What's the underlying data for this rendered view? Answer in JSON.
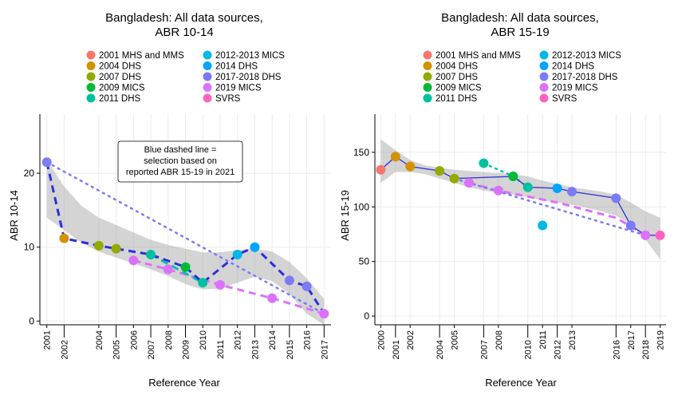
{
  "legend_entries": [
    {
      "label": "2001 MHS and MMS",
      "color": "#F8766D"
    },
    {
      "label": "2004 DHS",
      "color": "#D39200"
    },
    {
      "label": "2007 DHS",
      "color": "#93AA00"
    },
    {
      "label": "2009 MICS",
      "color": "#00BA38"
    },
    {
      "label": "2011 DHS",
      "color": "#00C19F"
    },
    {
      "label": "2012-2013 MICS",
      "color": "#00B9E3"
    },
    {
      "label": "2014 DHS",
      "color": "#00A5FF"
    },
    {
      "label": "2017-2018 DHS",
      "color": "#7B7BF4"
    },
    {
      "label": "2019 MICS",
      "color": "#DB72FB"
    },
    {
      "label": "SVRS",
      "color": "#FF61C3"
    }
  ],
  "annotation": {
    "lines": [
      "Blue dashed line =",
      "selection based on",
      "reported ABR 15-19 in 2021"
    ]
  },
  "chart_data": [
    {
      "type": "scatter",
      "title": "Bangladesh: All data sources,",
      "subtitle": "ABR 10-14",
      "xlabel": "Reference Year",
      "ylabel": "ABR 10-14",
      "xlim": [
        2000.6,
        2017.4
      ],
      "ylim": [
        -0.5,
        28
      ],
      "xticks": [
        2001,
        2002,
        2004,
        2005,
        2006,
        2007,
        2008,
        2009,
        2010,
        2011,
        2012,
        2013,
        2014,
        2015,
        2016,
        2017
      ],
      "yticks": [
        0,
        10,
        20
      ],
      "grid": true,
      "points": [
        {
          "x": 2001,
          "y": 21.5,
          "source": "2017-2018 DHS"
        },
        {
          "x": 2002,
          "y": 11.2,
          "source": "2004 DHS"
        },
        {
          "x": 2004,
          "y": 10.2,
          "source": "2007 DHS"
        },
        {
          "x": 2005,
          "y": 9.8,
          "source": "2007 DHS"
        },
        {
          "x": 2006,
          "y": 8.2,
          "source": "2019 MICS"
        },
        {
          "x": 2007,
          "y": 9.0,
          "source": "2011 DHS"
        },
        {
          "x": 2008,
          "y": 7.0,
          "source": "2019 MICS"
        },
        {
          "x": 2009,
          "y": 7.3,
          "source": "2009 MICS"
        },
        {
          "x": 2010,
          "y": 5.2,
          "source": "2011 DHS"
        },
        {
          "x": 2011,
          "y": 4.9,
          "source": "2019 MICS"
        },
        {
          "x": 2012,
          "y": 9.0,
          "source": "2012-2013 MICS"
        },
        {
          "x": 2013,
          "y": 10.0,
          "source": "2014 DHS"
        },
        {
          "x": 2014,
          "y": 3.1,
          "source": "2019 MICS"
        },
        {
          "x": 2015,
          "y": 5.5,
          "source": "2017-2018 DHS"
        },
        {
          "x": 2016,
          "y": 4.7,
          "source": "2017-2018 DHS"
        },
        {
          "x": 2017,
          "y": 1.0,
          "source": "2019 MICS"
        }
      ],
      "lines": [
        {
          "color": "#7B7BF4",
          "style": "dotted",
          "points": [
            [
              2001,
              21.5
            ],
            [
              2017,
              1.0
            ]
          ]
        },
        {
          "color": "#DB72FB",
          "style": "dashed",
          "points": [
            [
              2006,
              8.2
            ],
            [
              2008,
              7.0
            ],
            [
              2011,
              4.9
            ],
            [
              2014,
              3.1
            ],
            [
              2017,
              1.0
            ]
          ]
        },
        {
          "color": "#00C19F",
          "style": "dashed",
          "points": [
            [
              2007,
              9.0
            ],
            [
              2010,
              5.2
            ]
          ]
        },
        {
          "color": "#2E2EDD",
          "style": "dashed",
          "points": [
            [
              2001,
              21.5
            ],
            [
              2002,
              11.2
            ],
            [
              2004,
              10.2
            ],
            [
              2005,
              9.8
            ],
            [
              2007,
              9.0
            ],
            [
              2009,
              7.3
            ],
            [
              2010,
              5.2
            ],
            [
              2012,
              9.0
            ],
            [
              2013,
              10.0
            ],
            [
              2015,
              5.5
            ],
            [
              2016,
              4.7
            ],
            [
              2017,
              1.0
            ]
          ]
        }
      ],
      "band": {
        "x": [
          2001,
          2002,
          2003,
          2004,
          2005,
          2006,
          2007,
          2008,
          2009,
          2010,
          2011,
          2012,
          2013,
          2014,
          2015,
          2016,
          2017
        ],
        "lower": [
          14.0,
          12.3,
          10.6,
          9.4,
          8.6,
          7.8,
          7.0,
          6.1,
          5.0,
          4.3,
          4.4,
          5.2,
          6.0,
          5.4,
          3.7,
          1.0,
          -0.5
        ],
        "upper": [
          21.8,
          18.2,
          15.6,
          14.0,
          13.0,
          12.0,
          11.0,
          10.3,
          9.8,
          9.3,
          9.3,
          9.6,
          9.8,
          9.4,
          8.0,
          5.8,
          3.0
        ]
      }
    },
    {
      "type": "scatter",
      "title": "Bangladesh: All data sources,",
      "subtitle": "ABR 15-19",
      "xlabel": "Reference Year",
      "ylabel": "ABR 15-19",
      "xlim": [
        1999.6,
        2019.4
      ],
      "ylim": [
        -8,
        185
      ],
      "xticks": [
        2000,
        2001,
        2002,
        2004,
        2005,
        2007,
        2008,
        2010,
        2011,
        2012,
        2013,
        2016,
        2017,
        2018,
        2019
      ],
      "yticks": [
        0,
        50,
        100,
        150
      ],
      "grid": true,
      "points": [
        {
          "x": 2000,
          "y": 134,
          "source": "2001 MHS and MMS"
        },
        {
          "x": 2001,
          "y": 146,
          "source": "2004 DHS"
        },
        {
          "x": 2002,
          "y": 137,
          "source": "2004 DHS"
        },
        {
          "x": 2004,
          "y": 133,
          "source": "2007 DHS"
        },
        {
          "x": 2005,
          "y": 126,
          "source": "2007 DHS"
        },
        {
          "x": 2006,
          "y": 122,
          "source": "2019 MICS"
        },
        {
          "x": 2007,
          "y": 140,
          "source": "2011 DHS"
        },
        {
          "x": 2008,
          "y": 115,
          "source": "2019 MICS"
        },
        {
          "x": 2009,
          "y": 128,
          "source": "2009 MICS"
        },
        {
          "x": 2010,
          "y": 118,
          "source": "2011 DHS"
        },
        {
          "x": 2011,
          "y": 83,
          "source": "2012-2013 MICS"
        },
        {
          "x": 2012,
          "y": 117,
          "source": "2014 DHS"
        },
        {
          "x": 2013,
          "y": 114,
          "source": "2017-2018 DHS"
        },
        {
          "x": 2016,
          "y": 108,
          "source": "2017-2018 DHS"
        },
        {
          "x": 2017,
          "y": 83,
          "source": "2017-2018 DHS"
        },
        {
          "x": 2018,
          "y": 74,
          "source": "2019 MICS"
        },
        {
          "x": 2019,
          "y": 74,
          "source": "SVRS"
        }
      ],
      "lines": [
        {
          "color": "#DB72FB",
          "style": "dashed",
          "points": [
            [
              2006,
              122
            ],
            [
              2008,
              115
            ],
            [
              2012,
              104
            ],
            [
              2016,
              90
            ],
            [
              2018,
              74
            ]
          ]
        },
        {
          "color": "#00C19F",
          "style": "dotted",
          "points": [
            [
              2007,
              140
            ],
            [
              2009,
              128
            ],
            [
              2010,
              118
            ]
          ]
        },
        {
          "color": "#7B7BF4",
          "style": "dotted",
          "points": [
            [
              2005,
              126
            ],
            [
              2018,
              74
            ]
          ]
        },
        {
          "color": "#3A3AD6",
          "style": "solid",
          "points": [
            [
              2000,
              134
            ],
            [
              2001,
              146
            ],
            [
              2002,
              137
            ],
            [
              2004,
              133
            ],
            [
              2005,
              126
            ],
            [
              2009,
              128
            ],
            [
              2010,
              118
            ],
            [
              2012,
              117
            ],
            [
              2013,
              114
            ],
            [
              2016,
              108
            ],
            [
              2017,
              83
            ],
            [
              2018,
              74
            ],
            [
              2019,
              74
            ]
          ]
        }
      ],
      "band": {
        "x": [
          2000,
          2001,
          2002,
          2003,
          2004,
          2005,
          2006,
          2007,
          2008,
          2009,
          2010,
          2011,
          2012,
          2013,
          2014,
          2015,
          2016,
          2017,
          2018,
          2019
        ],
        "lower": [
          122,
          132,
          132,
          130,
          126,
          122,
          118,
          115,
          113,
          111,
          109,
          106,
          104,
          102,
          99,
          96,
          92,
          84,
          70,
          52
        ],
        "upper": [
          162,
          152,
          143,
          138,
          136,
          134,
          133,
          132,
          131,
          130,
          128,
          124,
          121,
          118,
          116,
          114,
          111,
          104,
          96,
          90
        ]
      }
    }
  ]
}
